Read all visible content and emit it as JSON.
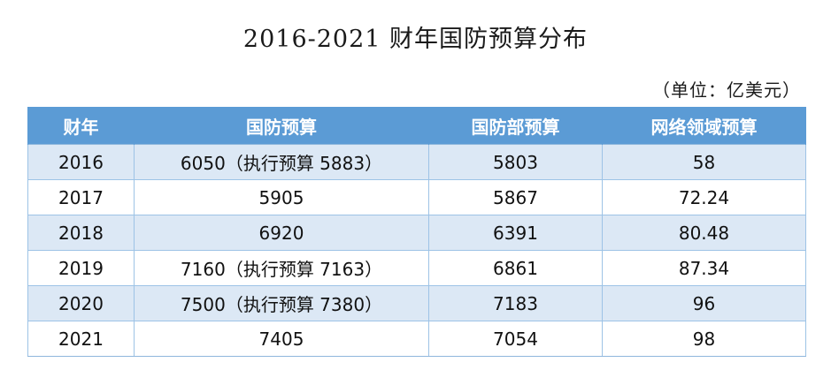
{
  "title": "2016-2021 财年国防预算分布",
  "unit_note": "（单位：亿美元）",
  "table": {
    "headers": [
      "财年",
      "国防预算",
      "国防部预算",
      "网络领域预算"
    ],
    "rows": [
      [
        "2016",
        "6050（执行预算 5883）",
        "5803",
        "58"
      ],
      [
        "2017",
        "5905",
        "5867",
        "72.24"
      ],
      [
        "2018",
        "6920",
        "6391",
        "80.48"
      ],
      [
        "2019",
        "7160（执行预算 7163）",
        "6861",
        "87.34"
      ],
      [
        "2020",
        "7500（执行预算 7380）",
        "7183",
        "96"
      ],
      [
        "2021",
        "7405",
        "7054",
        "98"
      ]
    ]
  },
  "colors": {
    "header_bg": "#5b9bd5",
    "header_text": "#ffffff",
    "stripe_bg": "#dce8f5",
    "border": "#9dc3e6"
  }
}
